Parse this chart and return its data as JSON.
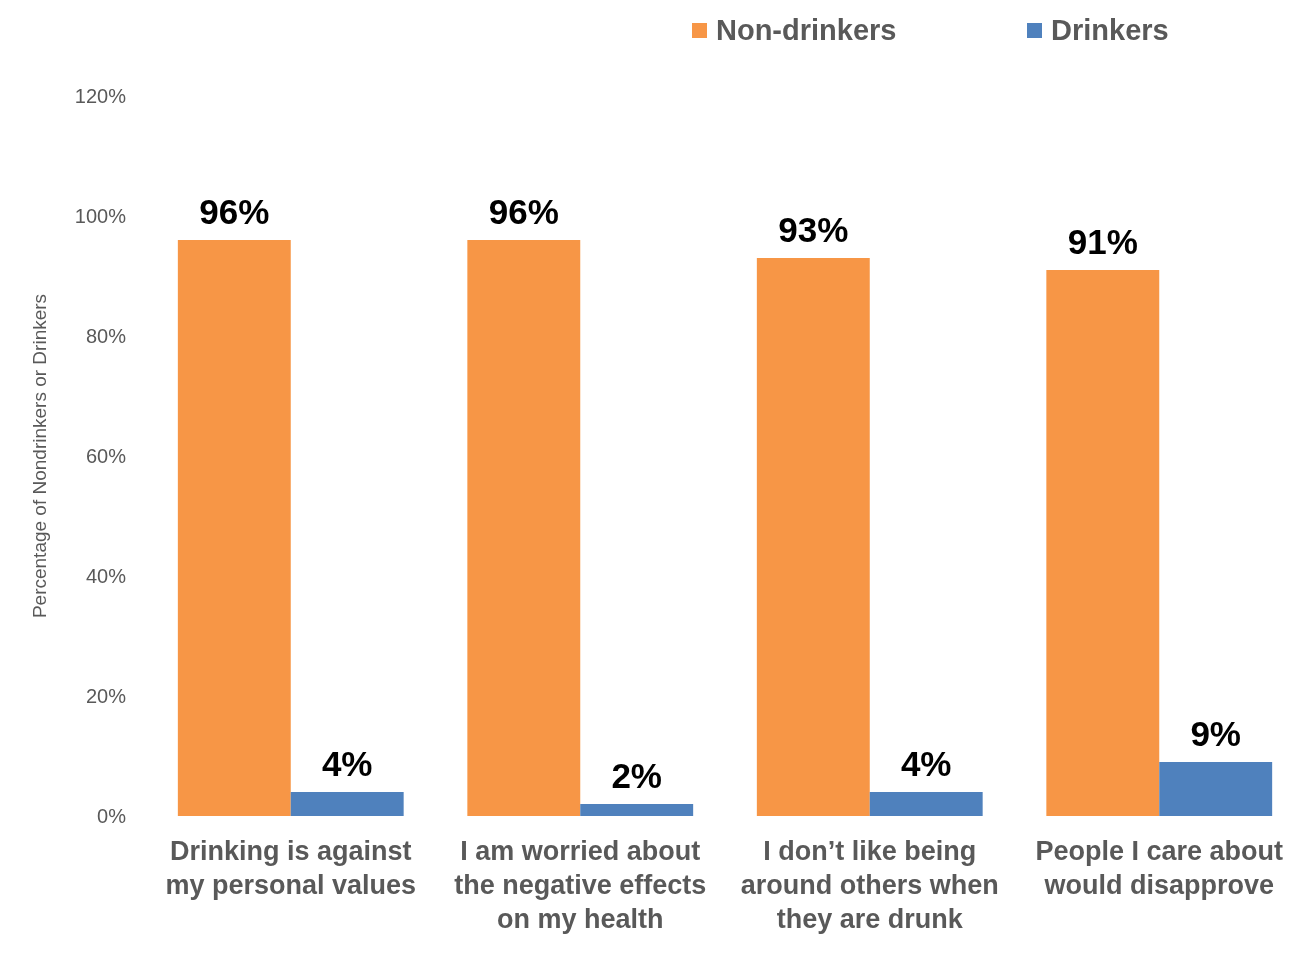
{
  "chart_data": {
    "type": "bar",
    "ylabel": "Percentage of Nondrinkers or Drinkers",
    "categories": [
      "Drinking is against my personal values",
      "I am worried about the negative effects on my health",
      "I don’t like being around others when they are drunk",
      "People I care about would disapprove"
    ],
    "series": [
      {
        "name": "Non-drinkers",
        "color": "#f79646",
        "values": [
          96,
          96,
          93,
          91
        ],
        "value_labels": [
          "96%",
          "96%",
          "93%",
          "91%"
        ]
      },
      {
        "name": "Drinkers",
        "color": "#4f81bd",
        "values": [
          4,
          2,
          4,
          9
        ],
        "value_labels": [
          "4%",
          "2%",
          "4%",
          "9%"
        ]
      }
    ],
    "ylim": [
      0,
      120
    ],
    "yticks": [
      {
        "value": 0,
        "label": "0%"
      },
      {
        "value": 20,
        "label": "20%"
      },
      {
        "value": 40,
        "label": "40%"
      },
      {
        "value": 60,
        "label": "60%"
      },
      {
        "value": 80,
        "label": "80%"
      },
      {
        "value": 100,
        "label": "100%"
      },
      {
        "value": 120,
        "label": "120%"
      }
    ],
    "legend": "top right",
    "grid": false
  }
}
